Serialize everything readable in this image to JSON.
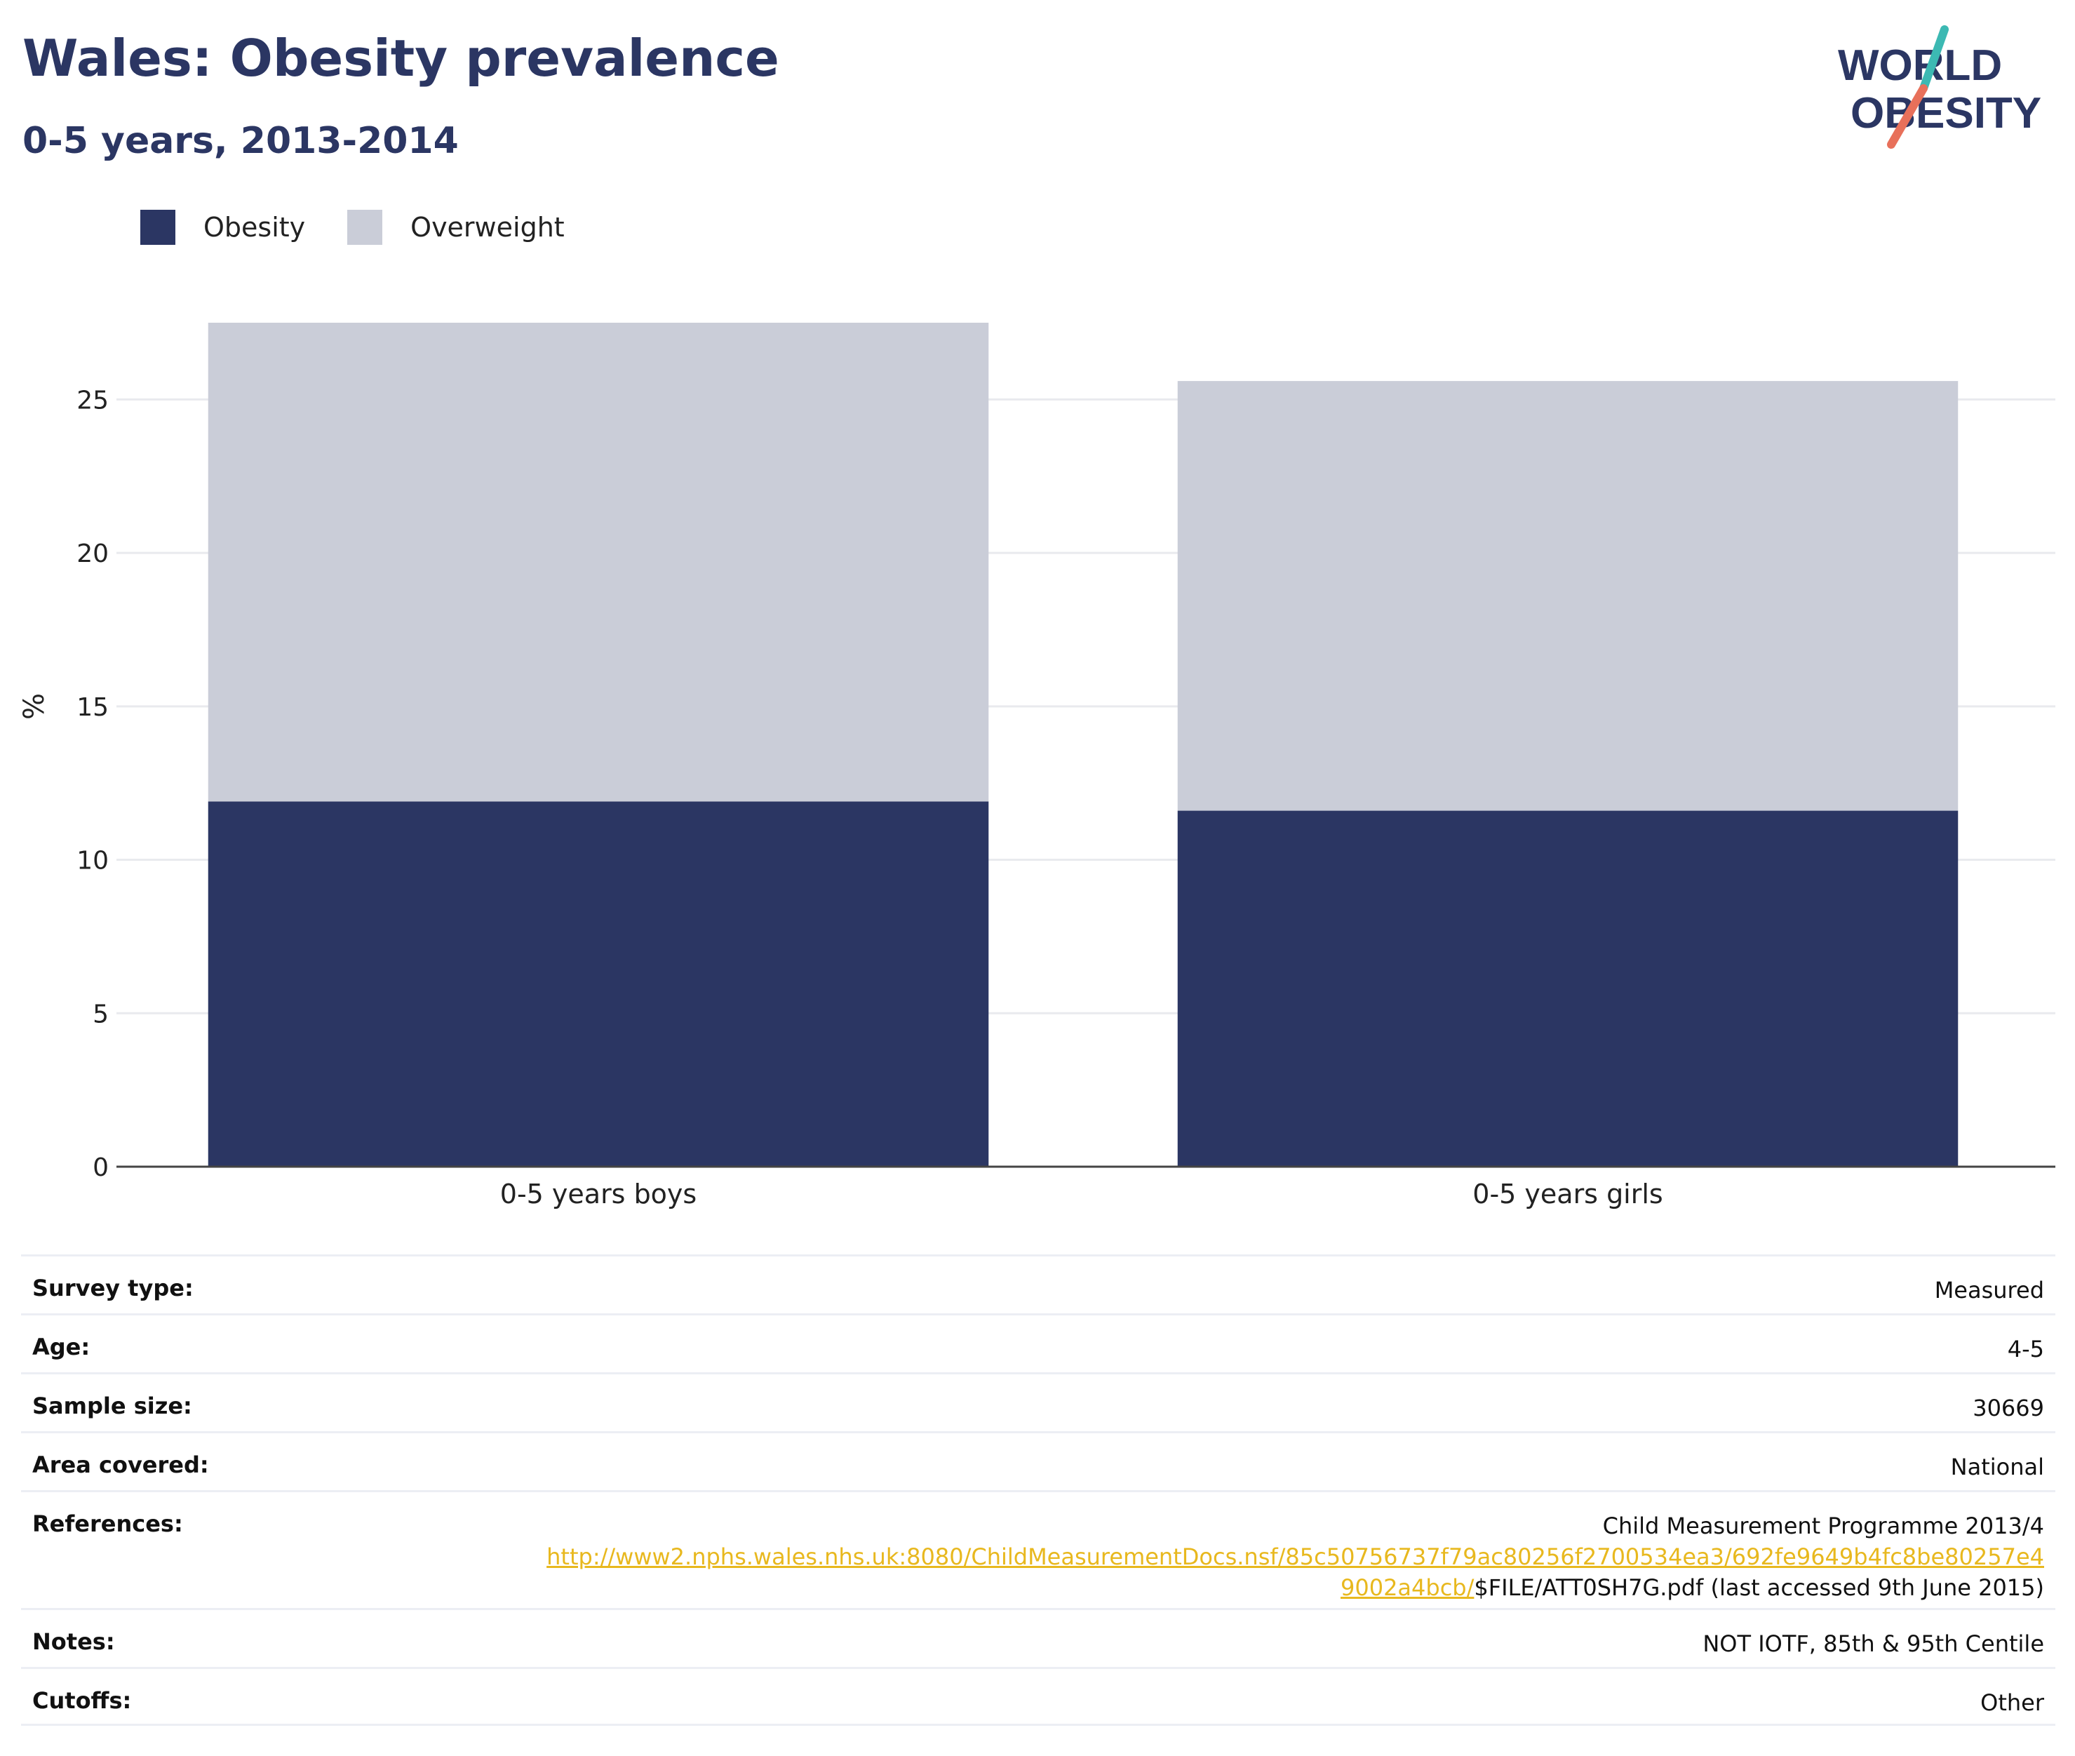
{
  "header": {
    "title": "Wales: Obesity prevalence",
    "subtitle": "0-5 years, 2013-2014"
  },
  "logo": {
    "line1": "WORLD",
    "line2": "OBESITY",
    "colors": {
      "text": "#2b3663",
      "slash_top": "#3cb9b3",
      "slash_bottom": "#e8705a"
    }
  },
  "legend": [
    {
      "label": "Obesity",
      "color": "#2b3663"
    },
    {
      "label": "Overweight",
      "color": "#cacdd8"
    }
  ],
  "chart_data": {
    "type": "bar",
    "stacked": true,
    "categories": [
      "0-5 years boys",
      "0-5 years girls"
    ],
    "series": [
      {
        "name": "Obesity",
        "values": [
          11.9,
          11.6
        ],
        "color": "#2b3663"
      },
      {
        "name": "Overweight",
        "values": [
          15.6,
          14.0
        ],
        "color": "#cacdd8"
      }
    ],
    "title": "Wales: Obesity prevalence",
    "subtitle": "0-5 years, 2013-2014",
    "xlabel": "",
    "ylabel": "%",
    "ylim": [
      0,
      27.5
    ],
    "yticks": [
      0,
      5,
      10,
      15,
      20,
      25
    ],
    "grid": true,
    "legend_position": "top-left"
  },
  "details": {
    "survey_type": {
      "label": "Survey type:",
      "value": "Measured"
    },
    "age": {
      "label": "Age:",
      "value": "4-5"
    },
    "sample_size": {
      "label": "Sample size:",
      "value": "30669"
    },
    "area_covered": {
      "label": "Area covered:",
      "value": "National"
    },
    "references": {
      "label": "References:",
      "line1": "Child Measurement Programme 2013/4",
      "link_part1": "http://www2.nphs.wales.nhs.uk:8080/ChildMeasurementDocs.nsf/85c50756737f79ac80256f2700534ea3/692fe9649b4fc8be80257e4",
      "link_part2": "9002a4bcb/",
      "suffix": "$FILE/ATT0SH7G.pdf (last accessed 9th June 2015)"
    },
    "notes": {
      "label": "Notes:",
      "value": "NOT IOTF, 85th & 95th Centile"
    },
    "cutoffs": {
      "label": "Cutoffs:",
      "value": "Other"
    }
  }
}
